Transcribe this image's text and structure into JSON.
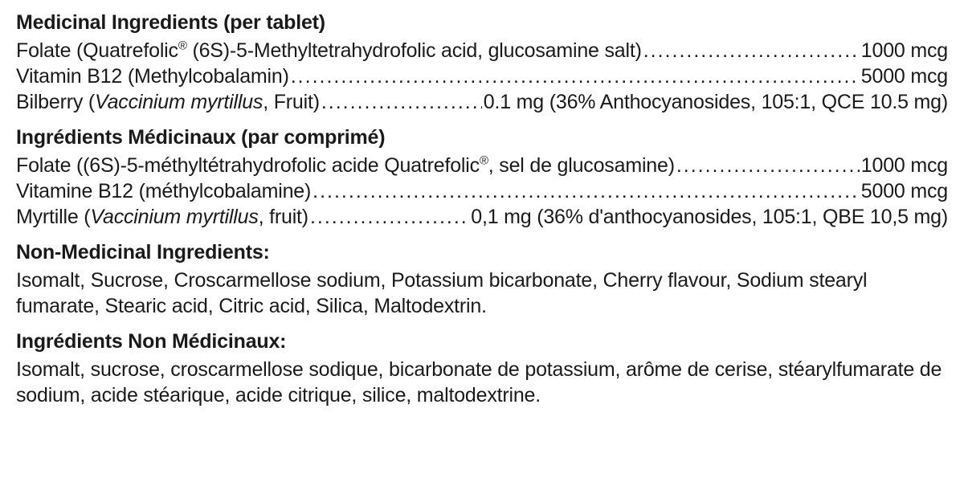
{
  "typography": {
    "font_family": "Helvetica, Arial, sans-serif",
    "heading_weight": 700,
    "body_weight": 400,
    "heading_size_pt": 19,
    "body_size_pt": 19,
    "text_color": "#1a1a1a",
    "background_color": "#ffffff"
  },
  "sections": {
    "en_med": {
      "heading": "Medicinal Ingredients (per tablet)",
      "rows": [
        {
          "left_pre": "Folate (Quatrefolic",
          "left_sup": "®",
          "left_post": " (6S)-5-Methyltetrahydrofolic acid, glucosamine salt)",
          "right": "1000 mcg"
        },
        {
          "left_pre": "Vitamin B12 (Methylcobalamin)",
          "right": "5000 mcg"
        },
        {
          "left_pre": "Bilberry (",
          "left_italic": "Vaccinium myrtillus",
          "left_post": ", Fruit)",
          "right": "0.1 mg (36% Anthocyanosides, 105:1, QCE 10.5 mg)"
        }
      ]
    },
    "fr_med": {
      "heading": "Ingrédients Médicinaux (par comprimé)",
      "rows": [
        {
          "left_pre": "Folate ((6S)-5-méthyltétrahydrofolic acide Quatrefolic",
          "left_sup": "®",
          "left_post": ", sel de glucosamine)",
          "right": "1000 mcg"
        },
        {
          "left_pre": "Vitamine B12 (méthylcobalamine)",
          "right": "5000 mcg"
        },
        {
          "left_pre": "Myrtille (",
          "left_italic": "Vaccinium myrtillus",
          "left_post": ", fruit)",
          "right": "0,1 mg (36% d'anthocyanosides, 105:1, QBE 10,5 mg)"
        }
      ]
    },
    "en_nonmed": {
      "heading": "Non-Medicinal Ingredients:",
      "paragraph": "Isomalt, Sucrose, Croscarmellose sodium, Potassium bicarbonate, Cherry flavour, Sodium stearyl fumarate, Stearic acid, Citric acid, Silica, Maltodextrin."
    },
    "fr_nonmed": {
      "heading": "Ingrédients Non Médicinaux:",
      "paragraph": "Isomalt, sucrose, croscarmellose sodique, bicarbonate de potassium, arôme de cerise, stéarylfumarate de sodium, acide stéarique, acide citrique, silice, maltodextrine."
    }
  }
}
